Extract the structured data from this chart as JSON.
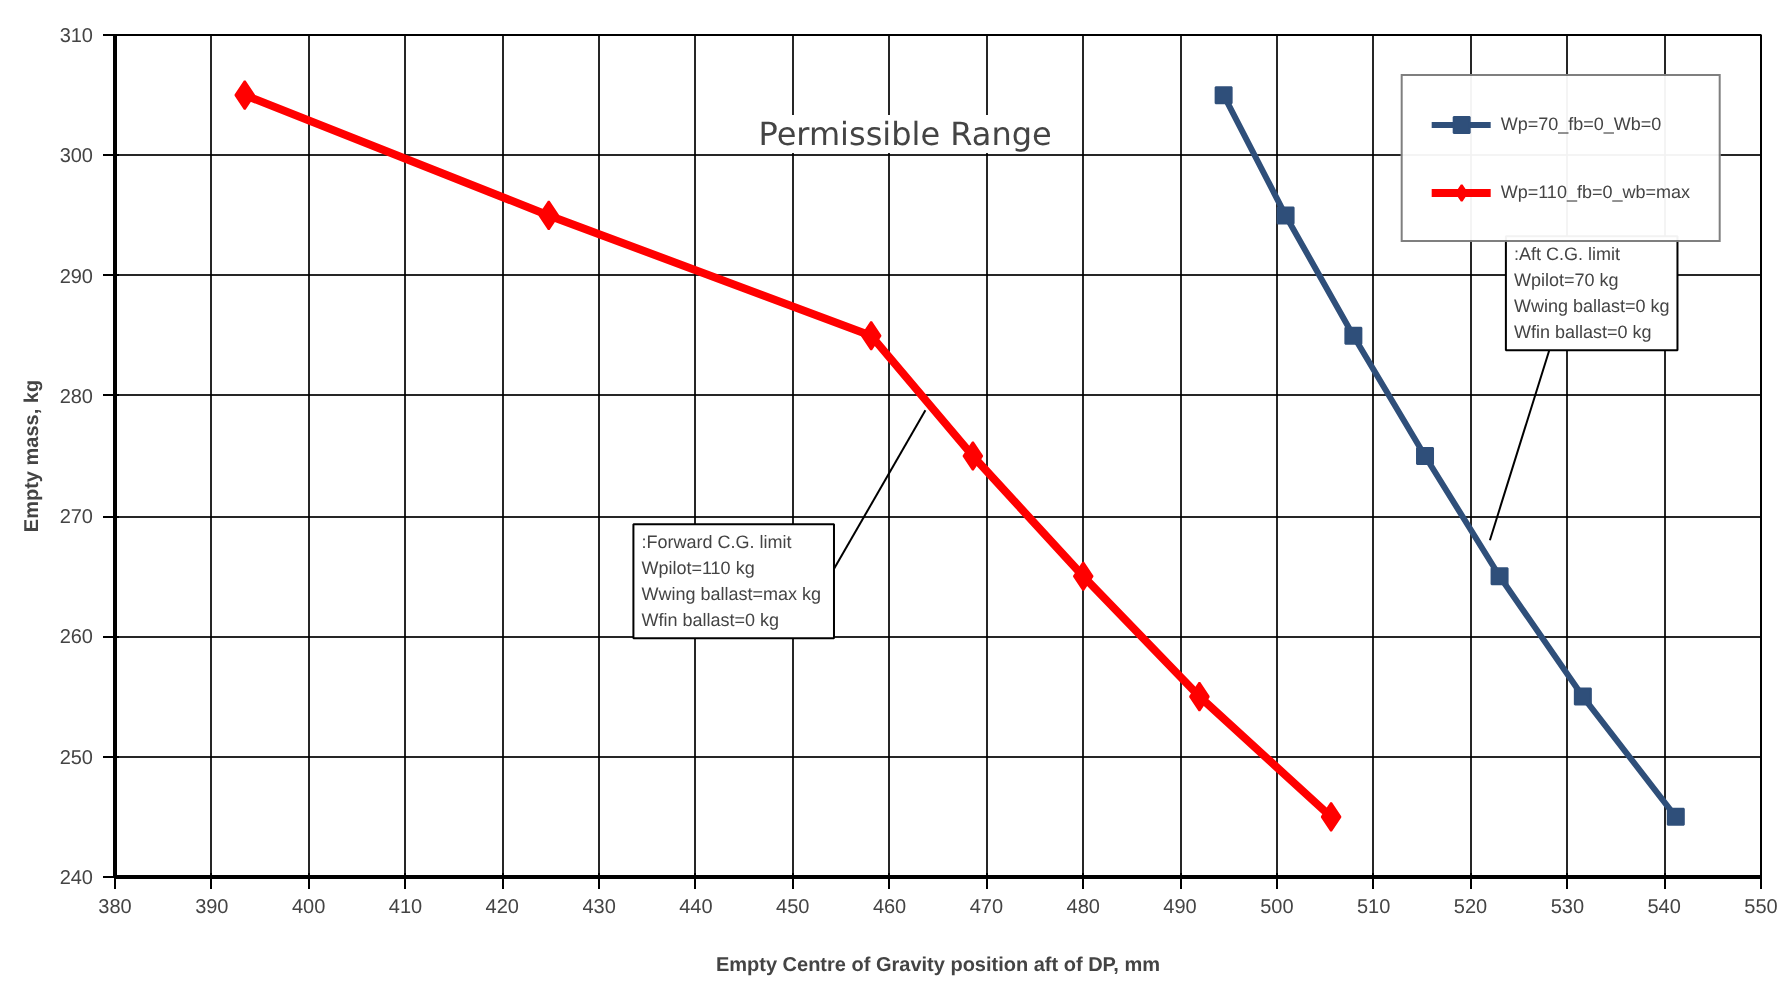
{
  "chart_data": {
    "type": "line",
    "xlabel": "Empty Centre of Gravity position aft of DP, mm",
    "ylabel": "Empty mass, kg",
    "xlim": [
      380,
      550
    ],
    "xticks": [
      380,
      390,
      400,
      410,
      420,
      430,
      440,
      450,
      460,
      470,
      480,
      490,
      500,
      510,
      520,
      530,
      540,
      550
    ],
    "ylim": [
      240,
      310
    ],
    "yticks": [
      240,
      250,
      260,
      270,
      280,
      290,
      300,
      310
    ],
    "grid": true,
    "legend": "top right",
    "line_style": "solid",
    "series": [
      {
        "name": "Wp=70_fb=0_Wb=0",
        "color": "#2f4f7a",
        "marker": "square",
        "x": [
          494.5,
          500.9,
          507.9,
          515.3,
          523.0,
          531.6,
          541.2
        ],
        "values": [
          305,
          295,
          285,
          275,
          265,
          255,
          245
        ]
      },
      {
        "name": "Wp=110_fb=0_wb=max",
        "color": "#ff0000",
        "marker": "diamond",
        "x": [
          393.4,
          424.8,
          458.1,
          468.6,
          480.0,
          492.0,
          505.6
        ],
        "values": [
          305,
          295,
          285,
          275,
          265,
          255,
          245
        ]
      }
    ],
    "annotations": [
      "Permissible Range",
      {
        "text": ":Forward C.G. limit\nWpilot=110  kg\nWwing ballast=max  kg\nWfin ballast=0  kg",
        "x": 463.7,
        "y": 278.8
      },
      {
        "text": ":Aft C.G. limit\nWpilot=70 kg\nWwing ballast=0 kg\nWfin ballast=0 kg",
        "x": 522,
        "y": 268
      }
    ]
  }
}
